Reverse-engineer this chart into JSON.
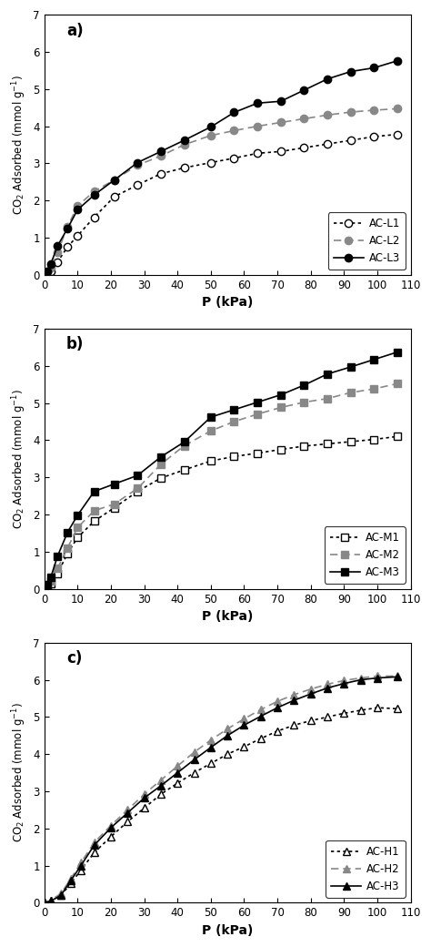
{
  "panel_a": {
    "label": "a)",
    "series": [
      {
        "name": "AC-L1",
        "color": "#000000",
        "linestyle": "dotted",
        "marker": "o",
        "mfc": "white",
        "mec": "#000000",
        "x": [
          0,
          1,
          2,
          4,
          7,
          10,
          15,
          21,
          28,
          35,
          42,
          50,
          57,
          64,
          71,
          78,
          85,
          92,
          99,
          106
        ],
        "y": [
          0,
          0.05,
          0.1,
          0.35,
          0.75,
          1.05,
          1.55,
          2.1,
          2.42,
          2.72,
          2.88,
          3.02,
          3.14,
          3.27,
          3.32,
          3.42,
          3.52,
          3.62,
          3.72,
          3.78
        ]
      },
      {
        "name": "AC-L2",
        "color": "#888888",
        "linestyle": "dashed",
        "marker": "o",
        "mfc": "#888888",
        "mec": "#888888",
        "x": [
          0,
          1,
          2,
          4,
          7,
          10,
          15,
          21,
          28,
          35,
          42,
          50,
          57,
          64,
          71,
          78,
          85,
          92,
          99,
          106
        ],
        "y": [
          0,
          0.08,
          0.2,
          0.6,
          1.3,
          1.85,
          2.25,
          2.55,
          2.95,
          3.2,
          3.5,
          3.75,
          3.88,
          4.0,
          4.1,
          4.2,
          4.3,
          4.38,
          4.43,
          4.47
        ]
      },
      {
        "name": "AC-L3",
        "color": "#000000",
        "linestyle": "solid",
        "marker": "o",
        "mfc": "#000000",
        "mec": "#000000",
        "x": [
          0,
          1,
          2,
          4,
          7,
          10,
          15,
          21,
          28,
          35,
          42,
          50,
          57,
          64,
          71,
          78,
          85,
          92,
          99,
          106
        ],
        "y": [
          0,
          0.1,
          0.3,
          0.78,
          1.25,
          1.75,
          2.15,
          2.55,
          3.02,
          3.32,
          3.62,
          3.98,
          4.37,
          4.62,
          4.67,
          4.97,
          5.27,
          5.47,
          5.57,
          5.76
        ]
      }
    ]
  },
  "panel_b": {
    "label": "b)",
    "series": [
      {
        "name": "AC-M1",
        "color": "#000000",
        "linestyle": "dotted",
        "marker": "s",
        "mfc": "white",
        "mec": "#000000",
        "x": [
          0,
          1,
          2,
          4,
          7,
          10,
          15,
          21,
          28,
          35,
          42,
          50,
          57,
          64,
          71,
          78,
          85,
          92,
          99,
          106
        ],
        "y": [
          0,
          0.06,
          0.15,
          0.42,
          0.95,
          1.38,
          1.82,
          2.18,
          2.62,
          2.98,
          3.2,
          3.44,
          3.56,
          3.65,
          3.75,
          3.84,
          3.9,
          3.96,
          4.02,
          4.1
        ]
      },
      {
        "name": "AC-M2",
        "color": "#888888",
        "linestyle": "dashed",
        "marker": "s",
        "mfc": "#888888",
        "mec": "#888888",
        "x": [
          0,
          1,
          2,
          4,
          7,
          10,
          15,
          21,
          28,
          35,
          42,
          50,
          57,
          64,
          71,
          78,
          85,
          92,
          99,
          106
        ],
        "y": [
          0,
          0.08,
          0.2,
          0.55,
          1.1,
          1.65,
          2.1,
          2.28,
          2.7,
          3.35,
          3.85,
          4.25,
          4.5,
          4.7,
          4.88,
          5.02,
          5.12,
          5.28,
          5.38,
          5.52
        ]
      },
      {
        "name": "AC-M3",
        "color": "#000000",
        "linestyle": "solid",
        "marker": "s",
        "mfc": "#000000",
        "mec": "#000000",
        "x": [
          0,
          1,
          2,
          4,
          7,
          10,
          15,
          21,
          28,
          35,
          42,
          50,
          57,
          64,
          71,
          78,
          85,
          92,
          99,
          106
        ],
        "y": [
          0,
          0.12,
          0.32,
          0.88,
          1.52,
          1.98,
          2.62,
          2.82,
          3.05,
          3.55,
          3.95,
          4.62,
          4.82,
          5.02,
          5.22,
          5.48,
          5.78,
          5.97,
          6.17,
          6.37
        ]
      }
    ]
  },
  "panel_c": {
    "label": "c)",
    "series": [
      {
        "name": "AC-H1",
        "color": "#000000",
        "linestyle": "dotted",
        "marker": "^",
        "mfc": "white",
        "mec": "#000000",
        "x": [
          0,
          2,
          5,
          8,
          11,
          15,
          20,
          25,
          30,
          35,
          40,
          45,
          50,
          55,
          60,
          65,
          70,
          75,
          80,
          85,
          90,
          95,
          100,
          106
        ],
        "y": [
          0,
          0.05,
          0.2,
          0.52,
          0.88,
          1.35,
          1.78,
          2.18,
          2.55,
          2.92,
          3.22,
          3.5,
          3.75,
          4.0,
          4.2,
          4.42,
          4.62,
          4.78,
          4.9,
          5.0,
          5.1,
          5.18,
          5.25,
          5.22
        ]
      },
      {
        "name": "AC-H2",
        "color": "#888888",
        "linestyle": "dashed",
        "marker": "^",
        "mfc": "#888888",
        "mec": "#888888",
        "x": [
          0,
          2,
          5,
          8,
          11,
          15,
          20,
          25,
          30,
          35,
          40,
          45,
          50,
          55,
          60,
          65,
          70,
          75,
          80,
          85,
          90,
          95,
          100,
          106
        ],
        "y": [
          0,
          0.07,
          0.25,
          0.65,
          1.08,
          1.62,
          2.08,
          2.5,
          2.92,
          3.3,
          3.68,
          4.05,
          4.38,
          4.68,
          4.95,
          5.2,
          5.42,
          5.6,
          5.75,
          5.88,
          5.98,
          6.05,
          6.1,
          6.1
        ]
      },
      {
        "name": "AC-H3",
        "color": "#000000",
        "linestyle": "solid",
        "marker": "^",
        "mfc": "#000000",
        "mec": "#000000",
        "x": [
          0,
          2,
          5,
          8,
          11,
          15,
          20,
          25,
          30,
          35,
          40,
          45,
          50,
          55,
          60,
          65,
          70,
          75,
          80,
          85,
          90,
          95,
          100,
          106
        ],
        "y": [
          0,
          0.05,
          0.2,
          0.6,
          1.0,
          1.55,
          2.02,
          2.42,
          2.82,
          3.15,
          3.5,
          3.85,
          4.18,
          4.5,
          4.78,
          5.02,
          5.25,
          5.45,
          5.62,
          5.78,
          5.9,
          6.0,
          6.05,
          6.08
        ]
      }
    ]
  },
  "ylabel": "CO$_2$ Adsorbed (mmol g$^{-1}$)",
  "xlabel": "P (kPa)",
  "ylim": [
    0,
    7
  ],
  "xlim": [
    0,
    110
  ],
  "yticks": [
    0,
    1,
    2,
    3,
    4,
    5,
    6,
    7
  ],
  "xticks": [
    0,
    10,
    20,
    30,
    40,
    50,
    60,
    70,
    80,
    90,
    100,
    110
  ],
  "legend_loc": "lower right",
  "marker_size": 6,
  "linewidth": 1.2
}
